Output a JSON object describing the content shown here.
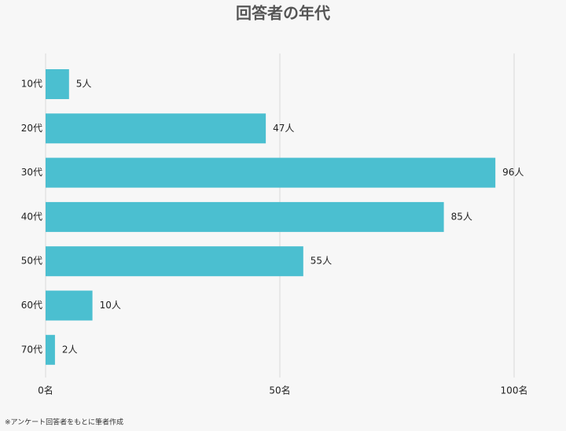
{
  "chart_data": {
    "type": "hbar",
    "title": "回答者の年代",
    "categories": [
      "10代",
      "20代",
      "30代",
      "40代",
      "50代",
      "60代",
      "70代"
    ],
    "values": [
      5,
      47,
      96,
      85,
      55,
      10,
      2
    ],
    "value_labels": [
      "5人",
      "47人",
      "96人",
      "85人",
      "55人",
      "10人",
      "2人"
    ],
    "color": "#4bbfd0",
    "xlim": [
      0,
      100
    ],
    "xticks": [
      {
        "value": 0,
        "label": "0名"
      },
      {
        "value": 50,
        "label": "50名"
      },
      {
        "value": 100,
        "label": "100名"
      }
    ],
    "grid": true,
    "footnote": "※アンケート回答者をもとに筆者作成"
  }
}
